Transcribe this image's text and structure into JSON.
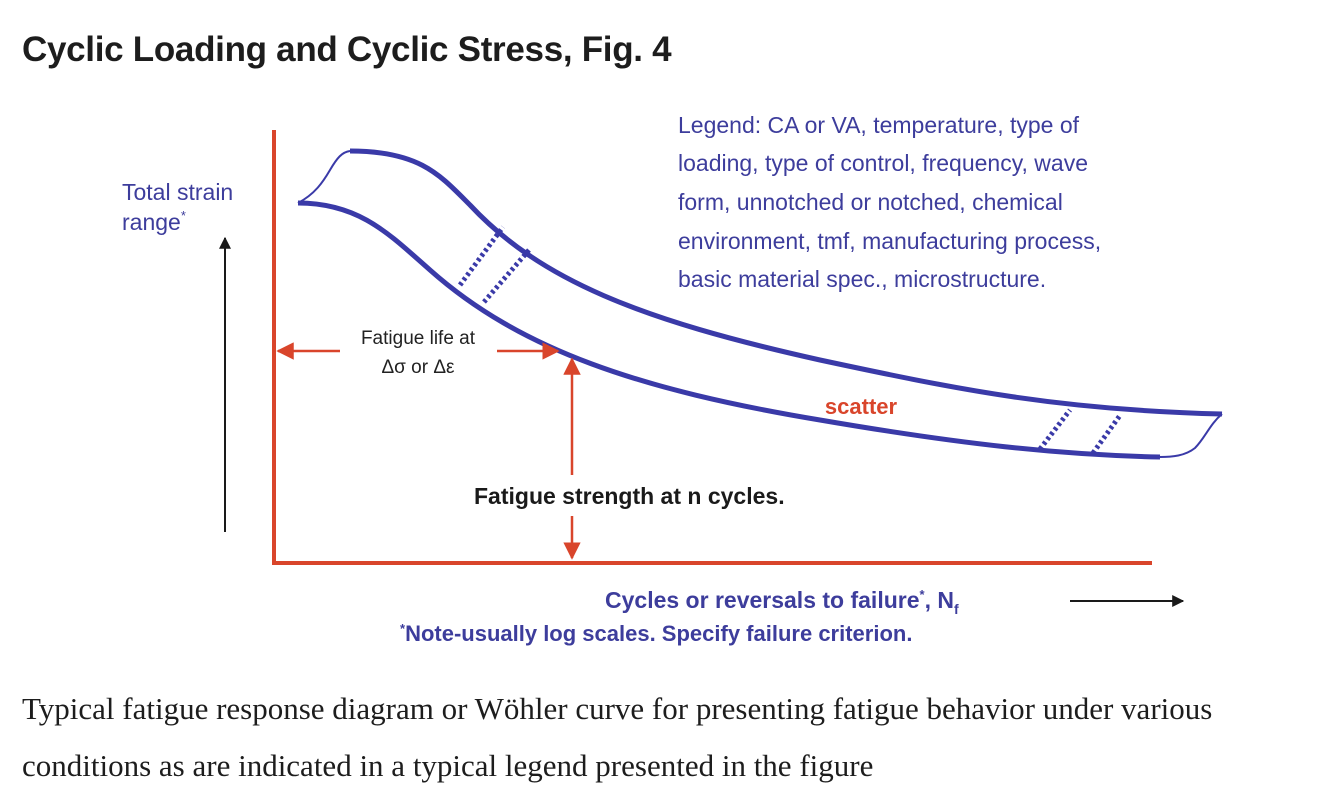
{
  "title": "Cyclic Loading and Cyclic Stress, Fig. 4",
  "diagram": {
    "y_label": {
      "line1": "Total strain",
      "line2": "range",
      "mark": "*"
    },
    "legend": {
      "lines": [
        "Legend: CA or VA, temperature, type of",
        "loading, type of control, frequency, wave",
        "form, unnotched or notched, chemical",
        "environment, tmf, manufacturing process,",
        "basic material spec., microstructure."
      ]
    },
    "fatigue_life_label": {
      "line1": "Fatigue life at",
      "line2": "Δσ or Δε"
    },
    "scatter_label": "scatter",
    "fatigue_strength_label": "Fatigue strength at n cycles.",
    "x_label": {
      "main": "Cycles or reversals to failure",
      "mark": "*",
      "symbol": "N",
      "subscript": "f"
    },
    "note": {
      "mark": "*",
      "text": "Note-usually log scales. Specify failure criterion."
    },
    "colors": {
      "curve": "#3a3aa8",
      "axes": "#d9452b",
      "text_blue": "#3d3d9c",
      "text_red": "#d9452b",
      "arrow": "#1a1a1a"
    }
  },
  "caption": "Typical fatigue response diagram or Wöhler curve for presenting fatigue behavior under various conditions as are indicated in a typical legend presented in the figure"
}
